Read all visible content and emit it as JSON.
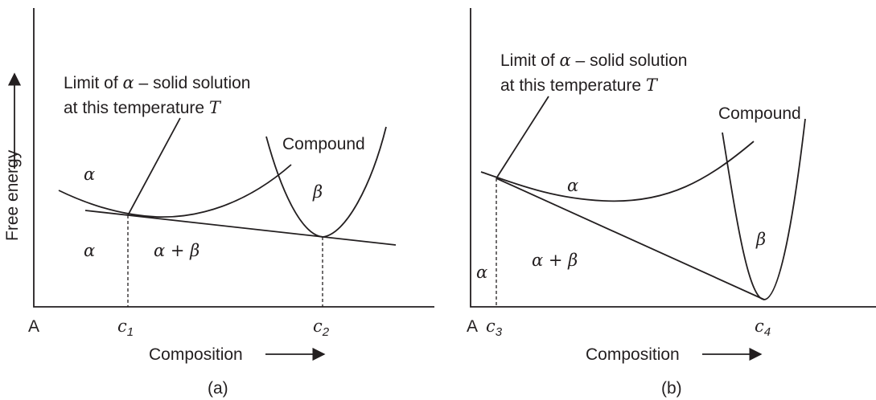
{
  "y_axis_label": "Free energy",
  "panels": [
    {
      "id": "a",
      "caption": "(a)",
      "origin_label": "A",
      "x_axis_label": "Composition",
      "annotation_line1_prefix": "Limit of ",
      "annotation_alpha": "α",
      "annotation_line1_suffix": " – solid solution",
      "annotation_line2_prefix": "at this temperature ",
      "annotation_T": "T",
      "compound_label": "Compound",
      "alpha_curve_label": "α",
      "beta_curve_label": "β",
      "alpha_region_label": "α",
      "two_phase_label": "α + β",
      "c_left": "c",
      "c_left_sub": "1",
      "c_right": "c",
      "c_right_sub": "2"
    },
    {
      "id": "b",
      "caption": "(b)",
      "origin_label": "A",
      "x_axis_label": "Composition",
      "annotation_line1_prefix": "Limit of ",
      "annotation_alpha": "α",
      "annotation_line1_suffix": " – solid solution",
      "annotation_line2_prefix": "at this temperature ",
      "annotation_T": "T",
      "compound_label": "Compound",
      "alpha_curve_label": "α",
      "beta_curve_label": "β",
      "alpha_region_label": "α",
      "two_phase_label": "α + β",
      "c_left": "c",
      "c_left_sub": "3",
      "c_right": "c",
      "c_right_sub": "4"
    }
  ]
}
